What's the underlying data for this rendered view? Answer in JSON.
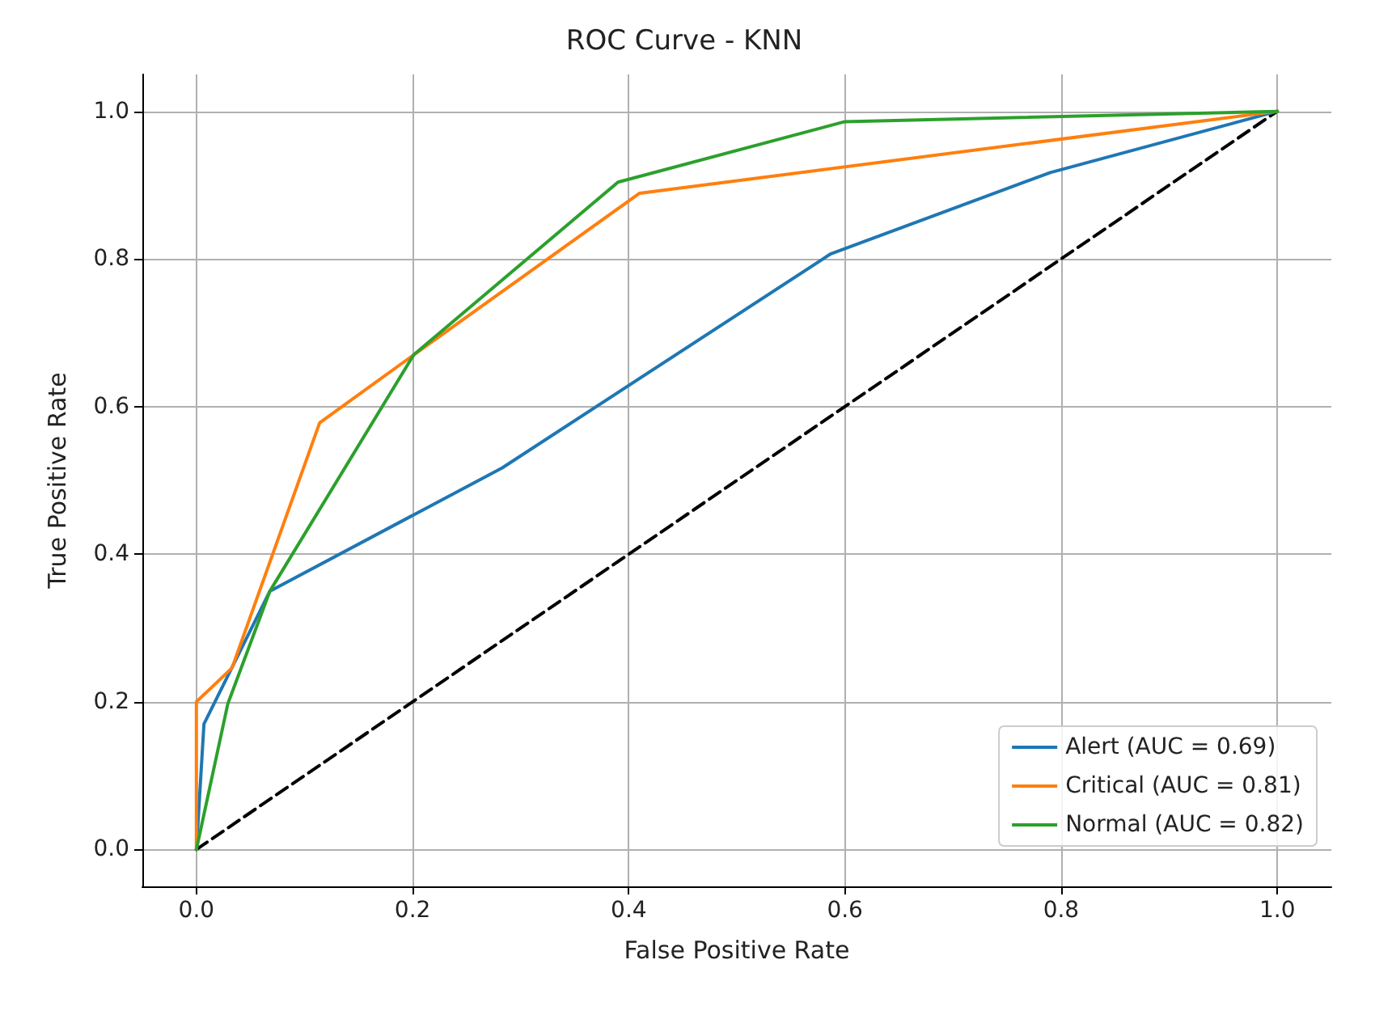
{
  "chart_data": {
    "type": "line",
    "title": "ROC Curve - KNN",
    "xlabel": "False Positive Rate",
    "ylabel": "True Positive Rate",
    "xlim": [
      -0.05,
      1.05
    ],
    "ylim": [
      -0.05,
      1.05
    ],
    "xticks": [
      {
        "value": 0,
        "label": "0.0"
      },
      {
        "value": 0.2,
        "label": "0.2"
      },
      {
        "value": 0.4,
        "label": "0.4"
      },
      {
        "value": 0.6,
        "label": "0.6"
      },
      {
        "value": 0.8,
        "label": "0.8"
      },
      {
        "value": 1,
        "label": "1.0"
      }
    ],
    "yticks": [
      {
        "value": 0,
        "label": "0.0"
      },
      {
        "value": 0.2,
        "label": "0.2"
      },
      {
        "value": 0.4,
        "label": "0.4"
      },
      {
        "value": 0.6,
        "label": "0.6"
      },
      {
        "value": 0.8,
        "label": "0.8"
      },
      {
        "value": 1,
        "label": "1.0"
      }
    ],
    "grid": true,
    "legend": "bottom right",
    "marker": "none",
    "line_style": "solid",
    "series": [
      {
        "name": "Alert (AUC = 0.69)",
        "color": "#1f77b4",
        "x": [
          0,
          0.007,
          0.068,
          0.283,
          0.587,
          0.79,
          1
        ],
        "values": [
          0,
          0.17,
          0.35,
          0.517,
          0.807,
          0.917,
          1
        ]
      },
      {
        "name": "Critical (AUC = 0.81)",
        "color": "#ff7f0e",
        "x": [
          0,
          0,
          0.033,
          0.114,
          0.201,
          0.41,
          1
        ],
        "values": [
          0,
          0.2,
          0.246,
          0.578,
          0.67,
          0.889,
          1
        ]
      },
      {
        "name": "Normal (AUC = 0.82)",
        "color": "#2ca02c",
        "x": [
          0,
          0.029,
          0.068,
          0.201,
          0.39,
          0.6,
          1
        ],
        "values": [
          0,
          0.197,
          0.35,
          0.67,
          0.904,
          0.986,
          1
        ]
      },
      {
        "color": "#000000",
        "line_style": "dashed",
        "x": [
          0,
          1
        ],
        "values": [
          0,
          1
        ]
      }
    ]
  }
}
